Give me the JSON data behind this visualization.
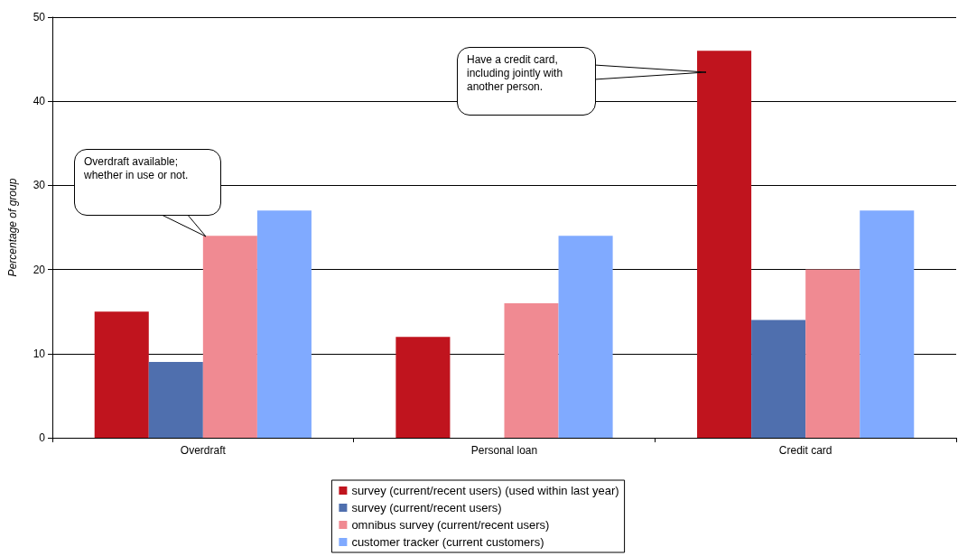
{
  "chart_data": {
    "type": "bar",
    "ylabel": "Percentage of group",
    "categories": [
      "Overdraft",
      "Personal loan",
      "Credit card"
    ],
    "series": [
      {
        "name": "survey (current/recent users) (used within last year)",
        "color": "#c0141e",
        "values": [
          15,
          12,
          46
        ]
      },
      {
        "name": "survey (current/recent users)",
        "color": "#4f6fae",
        "values": [
          9,
          null,
          14
        ]
      },
      {
        "name": "omnibus survey (current/recent users)",
        "color": "#f08a92",
        "values": [
          24,
          16,
          20
        ]
      },
      {
        "name": "customer tracker (current customers)",
        "color": "#80aaff",
        "values": [
          27,
          24,
          27
        ]
      }
    ],
    "ylim": [
      0,
      50
    ],
    "yticks": [
      0,
      10,
      20,
      30,
      40,
      50
    ],
    "grid": "y",
    "legend": "bottom",
    "annotations": [
      "Overdraft available; whether in use or not.",
      "Have a credit card, including jointly with another person."
    ]
  }
}
